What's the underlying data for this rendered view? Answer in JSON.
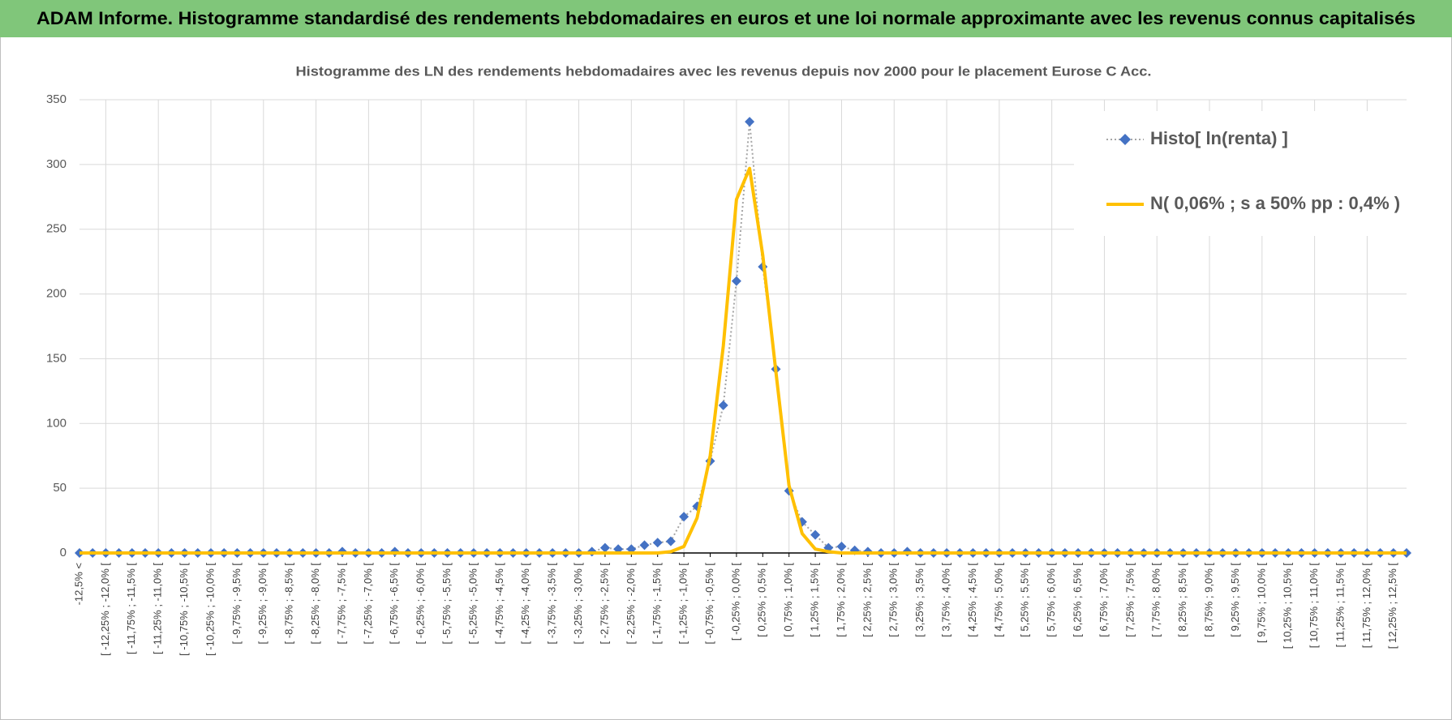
{
  "header": {
    "title": "ADAM Informe. Histogramme standardisé des rendements hebdomadaires en euros et une loi normale approximante avec les revenus connus capitalisés"
  },
  "chart_data": {
    "type": "line",
    "title": "Histogramme des LN des rendements hebdomadaires avec les revenus depuis nov 2000 pour le placement Eurose C Acc.",
    "categories": [
      "-12,5% <",
      null,
      "[ -12,25% ; -12,0% [",
      null,
      "[ -11,75% ; -11,5% [",
      null,
      "[ -11,25% ; -11,0% [",
      null,
      "[ -10,75% ; -10,5% [",
      null,
      "[ -10,25% ; -10,0% [",
      null,
      "[ -9,75% ; -9,5% [",
      null,
      "[ -9,25% ; -9,0% [",
      null,
      "[ -8,75% ; -8,5% [",
      null,
      "[ -8,25% ; -8,0% [",
      null,
      "[ -7,75% ; -7,5% [",
      null,
      "[ -7,25% ; -7,0% [",
      null,
      "[ -6,75% ; -6,5% [",
      null,
      "[ -6,25% ; -6,0% [",
      null,
      "[ -5,75% ; -5,5% [",
      null,
      "[ -5,25% ; -5,0% [",
      null,
      "[ -4,75% ; -4,5% [",
      null,
      "[ -4,25% ; -4,0% [",
      null,
      "[ -3,75% ; -3,5% [",
      null,
      "[ -3,25% ; -3,0% [",
      null,
      "[ -2,75% ; -2,5% [",
      null,
      "[ -2,25% ; -2,0% [",
      null,
      "[ -1,75% ; -1,5% [",
      null,
      "[ -1,25% ; -1,0% [",
      null,
      "[ -0,75% ; -0,5% [",
      null,
      "[ -0,25% ; 0,0% [",
      null,
      "[ 0,25% ; 0,5% [",
      null,
      "[ 0,75% ; 1,0% [",
      null,
      "[ 1,25% ; 1,5% [",
      null,
      "[ 1,75% ; 2,0% [",
      null,
      "[ 2,25% ; 2,5% [",
      null,
      "[ 2,75% ; 3,0% [",
      null,
      "[ 3,25% ; 3,5% [",
      null,
      "[ 3,75% ; 4,0% [",
      null,
      "[ 4,25% ; 4,5% [",
      null,
      "[ 4,75% ; 5,0% [",
      null,
      "[ 5,25% ; 5,5% [",
      null,
      "[ 5,75% ; 6,0% [",
      null,
      "[ 6,25% ; 6,5% [",
      null,
      "[ 6,75% ; 7,0% [",
      null,
      "[ 7,25% ; 7,5% [",
      null,
      "[ 7,75% ; 8,0% [",
      null,
      "[ 8,25% ; 8,5% [",
      null,
      "[ 8,75% ; 9,0% [",
      null,
      "[ 9,25% ; 9,5% [",
      null,
      "[ 9,75% ; 10,0% [",
      null,
      "[ 10,25% ; 10,5% [",
      null,
      "[ 10,75% ; 11,0% [",
      null,
      "[ 11,25% ; 11,5% [",
      null,
      "[ 11,75% ; 12,0% [",
      null,
      "[ 12,25% ; 12,5% [",
      null
    ],
    "series": [
      {
        "name": "Histo[ ln(renta) ]",
        "color": "#4472c4",
        "values": [
          0,
          0,
          0,
          0,
          0,
          0,
          0,
          0,
          0,
          0,
          0,
          0,
          0,
          0,
          0,
          0,
          0,
          0,
          0,
          0,
          1,
          0,
          0,
          0,
          1,
          0,
          0,
          0,
          0,
          0,
          0,
          0,
          0,
          0,
          0,
          0,
          0,
          0,
          0,
          1,
          4,
          3,
          3,
          6,
          8,
          9,
          28,
          36,
          71,
          114,
          210,
          333,
          221,
          142,
          48,
          24,
          14,
          4,
          5,
          2,
          1,
          0,
          0,
          1,
          0,
          0,
          0,
          0,
          0,
          0,
          0,
          0,
          0,
          0,
          0,
          0,
          0,
          0,
          0,
          0,
          0,
          0,
          0,
          0,
          0,
          0,
          0,
          0,
          0,
          0,
          0,
          0,
          0,
          0,
          0,
          0,
          0,
          0,
          0,
          0,
          0,
          0
        ]
      },
      {
        "name": "N( 0,06% ; s a 50% pp : 0,4% )",
        "color": "#ffc000",
        "values": [
          0,
          0,
          0,
          0,
          0,
          0,
          0,
          0,
          0,
          0,
          0,
          0,
          0,
          0,
          0,
          0,
          0,
          0,
          0,
          0,
          0,
          0,
          0,
          0,
          0,
          0,
          0,
          0,
          0,
          0,
          0,
          0,
          0,
          0,
          0,
          0,
          0,
          0,
          0,
          0,
          0,
          0,
          0,
          0,
          0,
          1,
          5,
          27,
          75,
          160,
          273,
          297,
          230,
          140,
          52,
          15,
          3,
          1,
          0,
          0,
          0,
          0,
          0,
          0,
          0,
          0,
          0,
          0,
          0,
          0,
          0,
          0,
          0,
          0,
          0,
          0,
          0,
          0,
          0,
          0,
          0,
          0,
          0,
          0,
          0,
          0,
          0,
          0,
          0,
          0,
          0,
          0,
          0,
          0,
          0,
          0,
          0,
          0,
          0,
          0,
          0,
          0
        ]
      }
    ],
    "ylim": [
      0,
      350
    ],
    "yticks": [
      0,
      50,
      100,
      150,
      200,
      250,
      300,
      350
    ],
    "grid": true,
    "legend": "top-right"
  }
}
